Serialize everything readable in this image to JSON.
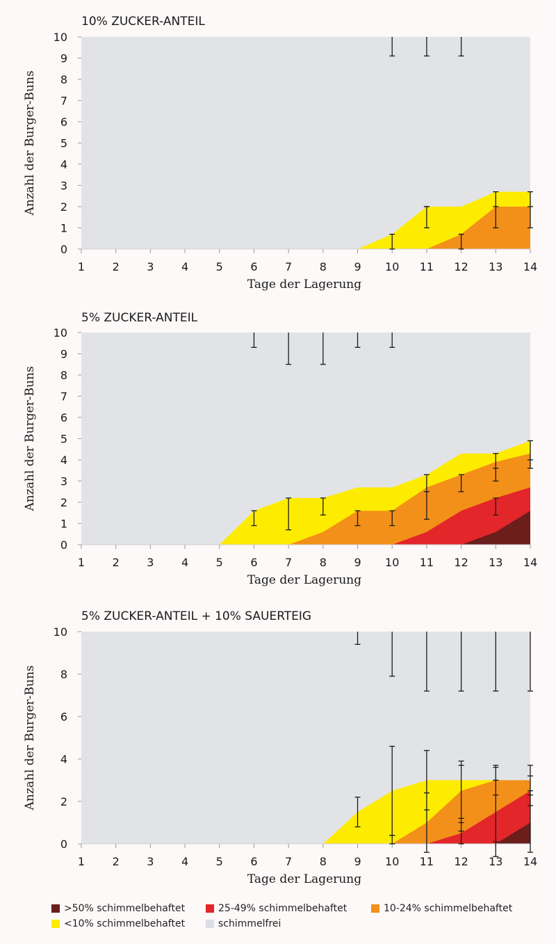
{
  "colors": {
    "background": "#fcf9f8",
    "plot_bg": "#e2e3e7",
    "gt50": "#6b1e1c",
    "p25_49": "#e2262a",
    "p10_24": "#f39019",
    "lt10": "#fdec00",
    "free": "#dcdde6"
  },
  "legend": [
    {
      "key": "gt50",
      "label": ">50% schimmelbehaftet"
    },
    {
      "key": "p25_49",
      "label": "25-49% schimmelbehaftet"
    },
    {
      "key": "p10_24",
      "label": "10-24% schimmelbehaftet"
    },
    {
      "key": "lt10",
      "label": "<10% schimmelbehaftet"
    },
    {
      "key": "free",
      "label": "schimmelfrei"
    }
  ],
  "chart_data": [
    {
      "type": "area",
      "title": "10% ZUCKER-ANTEIL",
      "xlabel": "Tage der Lagerung",
      "ylabel": "Anzahl der Burger-Buns",
      "x": [
        1,
        2,
        3,
        4,
        5,
        6,
        7,
        8,
        9,
        10,
        11,
        12,
        13,
        14
      ],
      "ylim": [
        0,
        10
      ],
      "yticks": [
        0,
        1,
        2,
        3,
        4,
        5,
        6,
        7,
        8,
        9,
        10
      ],
      "series": [
        {
          "key": "gt50",
          "cumulative": [
            0,
            0,
            0,
            0,
            0,
            0,
            0,
            0,
            0,
            0,
            0,
            0,
            0,
            0
          ]
        },
        {
          "key": "p25_49",
          "cumulative": [
            0,
            0,
            0,
            0,
            0,
            0,
            0,
            0,
            0,
            0,
            0,
            0,
            0,
            0
          ]
        },
        {
          "key": "p10_24",
          "cumulative": [
            0,
            0,
            0,
            0,
            0,
            0,
            0,
            0,
            0,
            0,
            0,
            0.7,
            2,
            2
          ]
        },
        {
          "key": "lt10",
          "cumulative": [
            0,
            0,
            0,
            0,
            0,
            0,
            0,
            0,
            0,
            0.7,
            2,
            2,
            2.7,
            2.7
          ]
        }
      ],
      "error_bars": [
        {
          "x": 10,
          "low": 9.1,
          "high": 10
        },
        {
          "x": 11,
          "low": 9.1,
          "high": 10
        },
        {
          "x": 12,
          "low": 9.1,
          "high": 10
        },
        {
          "x": 10,
          "low": 0,
          "high": 0.7
        },
        {
          "x": 11,
          "low": 1,
          "high": 2
        },
        {
          "x": 12,
          "low": 0,
          "high": 0.7
        },
        {
          "x": 13,
          "low": 1,
          "high": 2.7
        },
        {
          "x": 14,
          "low": 1,
          "high": 2.7
        }
      ],
      "error_caps": [
        {
          "x": 11,
          "y": 2
        },
        {
          "x": 13,
          "y": 2
        },
        {
          "x": 14,
          "y": 2
        }
      ]
    },
    {
      "type": "area",
      "title": "5% ZUCKER-ANTEIL",
      "xlabel": "Tage der Lagerung",
      "ylabel": "Anzahl der Burger-Buns",
      "x": [
        1,
        2,
        3,
        4,
        5,
        6,
        7,
        8,
        9,
        10,
        11,
        12,
        13,
        14
      ],
      "ylim": [
        0,
        10
      ],
      "yticks": [
        0,
        1,
        2,
        3,
        4,
        5,
        6,
        7,
        8,
        9,
        10
      ],
      "series": [
        {
          "key": "gt50",
          "cumulative": [
            0,
            0,
            0,
            0,
            0,
            0,
            0,
            0,
            0,
            0,
            0,
            0,
            0.6,
            1.6
          ]
        },
        {
          "key": "p25_49",
          "cumulative": [
            0,
            0,
            0,
            0,
            0,
            0,
            0,
            0,
            0,
            0,
            0.6,
            1.6,
            2.2,
            2.7
          ]
        },
        {
          "key": "p10_24",
          "cumulative": [
            0,
            0,
            0,
            0,
            0,
            0,
            0,
            0.6,
            1.6,
            1.6,
            2.7,
            3.3,
            3.9,
            4.3
          ]
        },
        {
          "key": "lt10",
          "cumulative": [
            0,
            0,
            0,
            0,
            0,
            1.6,
            2.2,
            2.2,
            2.7,
            2.7,
            3.3,
            4.3,
            4.3,
            4.9
          ]
        }
      ],
      "error_bars": [
        {
          "x": 6,
          "low": 9.3,
          "high": 10
        },
        {
          "x": 7,
          "low": 8.5,
          "high": 10
        },
        {
          "x": 8,
          "low": 8.5,
          "high": 10
        },
        {
          "x": 9,
          "low": 9.3,
          "high": 10
        },
        {
          "x": 10,
          "low": 9.3,
          "high": 10
        },
        {
          "x": 6,
          "low": 0.9,
          "high": 1.6
        },
        {
          "x": 7,
          "low": 0.7,
          "high": 2.2
        },
        {
          "x": 8,
          "low": 1.4,
          "high": 2.2
        },
        {
          "x": 9,
          "low": 0.9,
          "high": 1.6
        },
        {
          "x": 10,
          "low": 0.9,
          "high": 1.6
        },
        {
          "x": 11,
          "low": 1.2,
          "high": 3.3
        },
        {
          "x": 12,
          "low": 2.5,
          "high": 3.3
        },
        {
          "x": 13,
          "low": 1.4,
          "high": 2.2
        },
        {
          "x": 13,
          "low": 3.0,
          "high": 4.3
        },
        {
          "x": 14,
          "low": 3.6,
          "high": 4.9
        }
      ],
      "error_caps": [
        {
          "x": 11,
          "y": 2.5
        },
        {
          "x": 13,
          "y": 3.6
        },
        {
          "x": 14,
          "y": 4.0
        }
      ]
    },
    {
      "type": "area",
      "title": "5% ZUCKER-ANTEIL + 10% SAUERTEIG",
      "xlabel": "Tage der Lagerung",
      "ylabel": "Anzahl der Burger-Buns",
      "x": [
        1,
        2,
        3,
        4,
        5,
        6,
        7,
        8,
        9,
        10,
        11,
        12,
        13,
        14
      ],
      "ylim": [
        0,
        10
      ],
      "yticks": [
        0,
        2,
        4,
        6,
        8,
        10
      ],
      "series": [
        {
          "key": "gt50",
          "cumulative": [
            0,
            0,
            0,
            0,
            0,
            0,
            0,
            0,
            0,
            0,
            0,
            0,
            0,
            1
          ]
        },
        {
          "key": "p25_49",
          "cumulative": [
            0,
            0,
            0,
            0,
            0,
            0,
            0,
            0,
            0,
            0,
            0,
            0.5,
            1.5,
            2.5
          ]
        },
        {
          "key": "p10_24",
          "cumulative": [
            0,
            0,
            0,
            0,
            0,
            0,
            0,
            0,
            0,
            0,
            1,
            2.5,
            3,
            3
          ]
        },
        {
          "key": "lt10",
          "cumulative": [
            0,
            0,
            0,
            0,
            0,
            0,
            0,
            0,
            1.5,
            2.5,
            3,
            3,
            3,
            3
          ]
        }
      ],
      "error_bars": [
        {
          "x": 9,
          "low": 9.4,
          "high": 10
        },
        {
          "x": 10,
          "low": 7.9,
          "high": 10
        },
        {
          "x": 11,
          "low": 7.2,
          "high": 10
        },
        {
          "x": 12,
          "low": 7.2,
          "high": 10
        },
        {
          "x": 13,
          "low": 7.2,
          "high": 10
        },
        {
          "x": 14,
          "low": 7.2,
          "high": 10
        },
        {
          "x": 9,
          "low": 0.8,
          "high": 2.2
        },
        {
          "x": 10,
          "low": 0.4,
          "high": 4.6
        },
        {
          "x": 10,
          "low": 0,
          "high": 0.4
        },
        {
          "x": 11,
          "low": -0.4,
          "high": 4.4
        },
        {
          "x": 12,
          "low": 0,
          "high": 3.9
        },
        {
          "x": 13,
          "low": -0.6,
          "high": 3.7
        },
        {
          "x": 14,
          "low": -0.4,
          "high": 3.7
        }
      ],
      "error_caps": [
        {
          "x": 11,
          "y": 2.4
        },
        {
          "x": 11,
          "y": 1.6
        },
        {
          "x": 12,
          "y": 3.7
        },
        {
          "x": 12,
          "y": 1.2
        },
        {
          "x": 12,
          "y": 1.0
        },
        {
          "x": 12,
          "y": 0.6
        },
        {
          "x": 13,
          "y": 3.6
        },
        {
          "x": 13,
          "y": 3.0
        },
        {
          "x": 13,
          "y": 2.3
        },
        {
          "x": 13,
          "y": 0.1
        },
        {
          "x": 14,
          "y": 3.2
        },
        {
          "x": 14,
          "y": 2.5
        },
        {
          "x": 14,
          "y": 2.3
        },
        {
          "x": 14,
          "y": 1.8
        }
      ]
    }
  ]
}
